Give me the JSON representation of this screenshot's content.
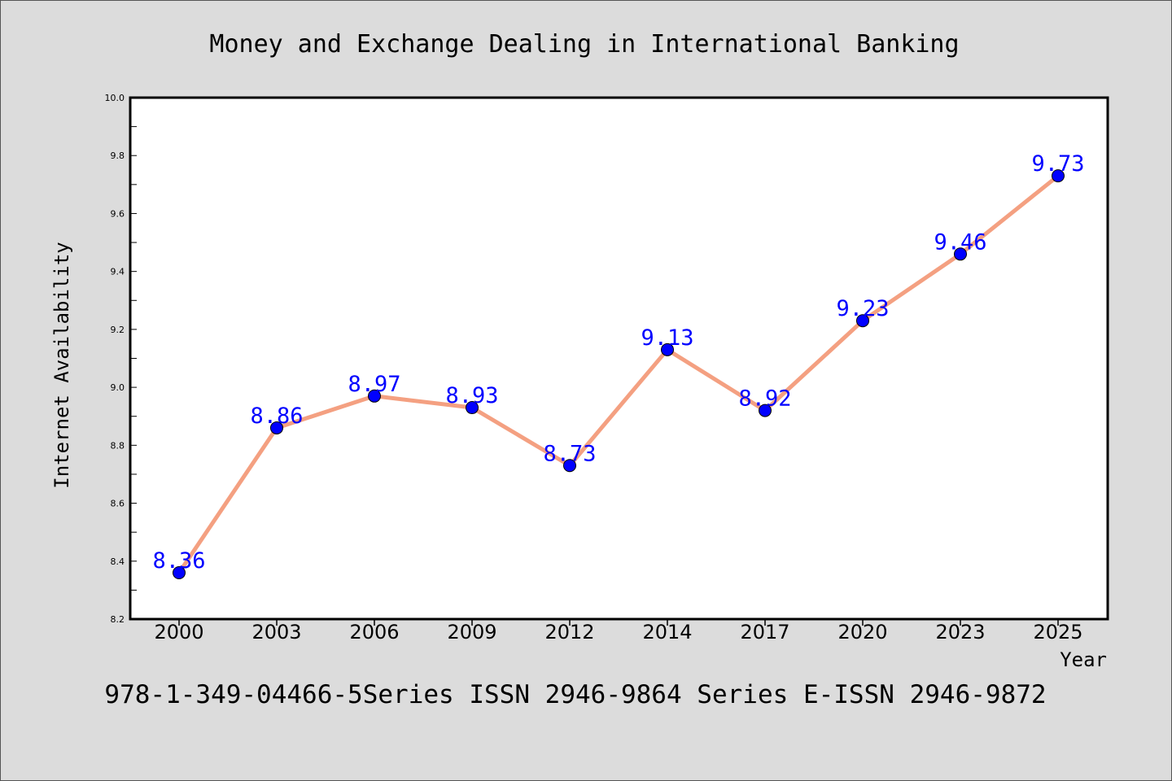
{
  "chart_data": {
    "type": "line",
    "title": "Money and Exchange Dealing in International Banking",
    "xlabel": "Year",
    "ylabel": "Internet Availability",
    "categories": [
      "2000",
      "2003",
      "2006",
      "2009",
      "2012",
      "2014",
      "2017",
      "2020",
      "2023",
      "2025"
    ],
    "values": [
      8.36,
      8.86,
      8.97,
      8.93,
      8.73,
      9.13,
      8.92,
      9.23,
      9.46,
      9.73
    ],
    "data_labels": [
      "8.36",
      "8.86",
      "8.97",
      "8.93",
      "8.73",
      "9.13",
      "8.92",
      "9.23",
      "9.46",
      "9.73"
    ],
    "ylim": [
      8.2,
      10.0
    ],
    "y_ticks": [
      "8.2",
      "8.4",
      "8.6",
      "8.8",
      "9.0",
      "9.2",
      "9.4",
      "9.6",
      "9.8",
      "10.0"
    ],
    "line_color": "#f4a081",
    "marker_color": "#0000ff",
    "label_color": "#0000ff",
    "grid": false,
    "legend": "none"
  },
  "footer": {
    "text": "978-1-349-04466-5Series ISSN 2946-9864 Series E-ISSN 2946-9872"
  }
}
